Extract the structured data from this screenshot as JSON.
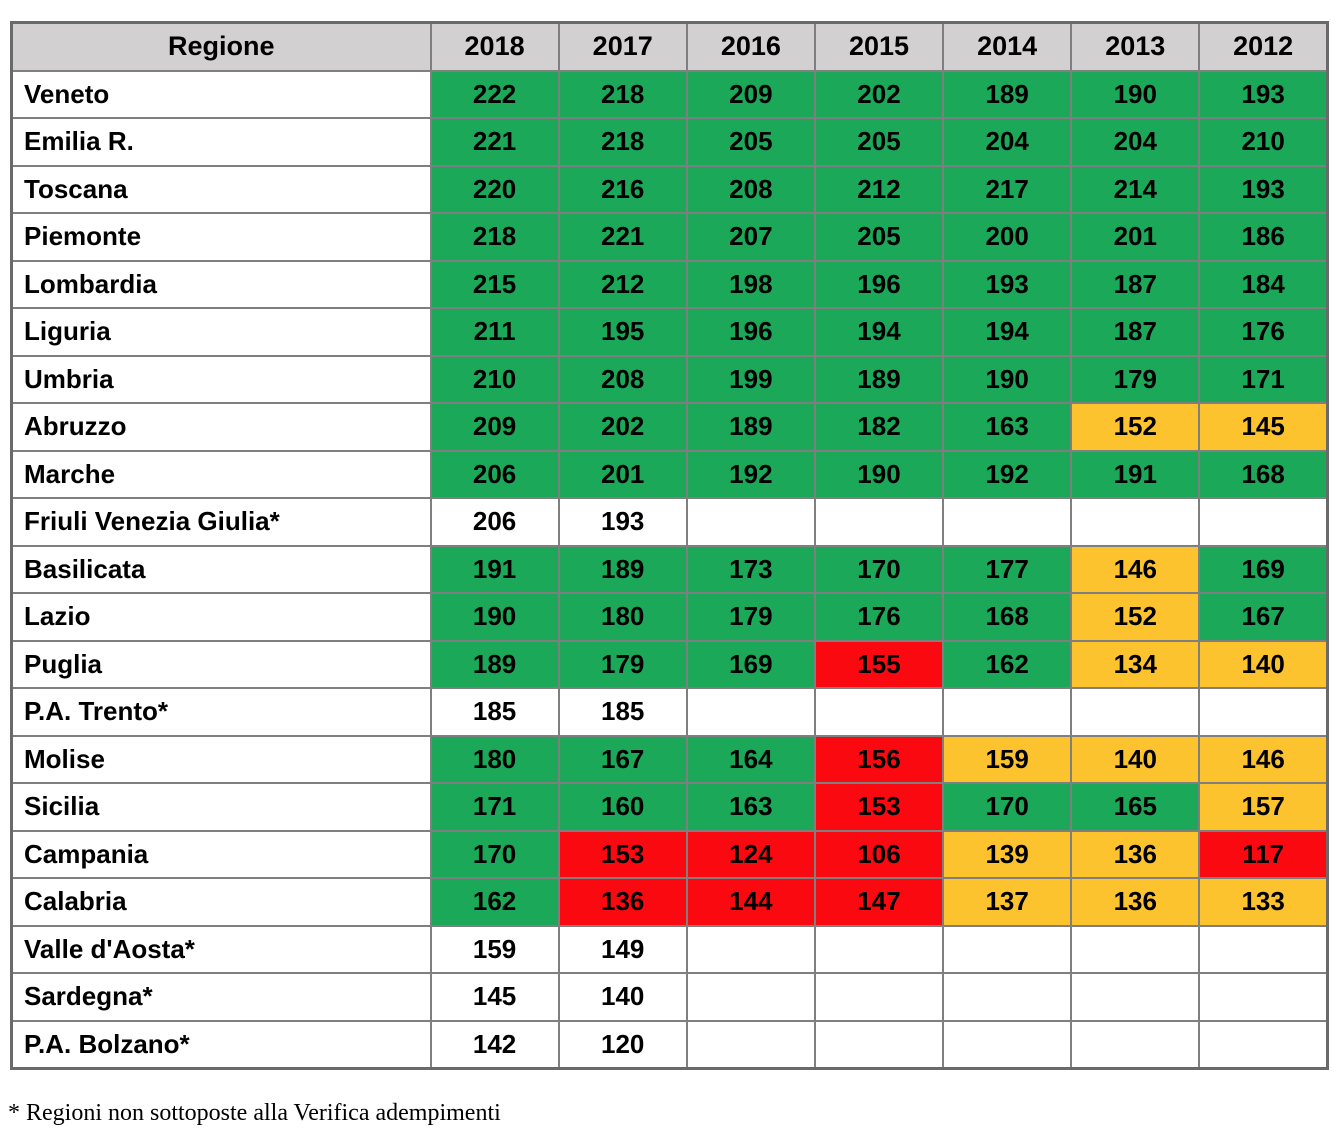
{
  "colors": {
    "green": "#1ba858",
    "orange": "#fdc32f",
    "red": "#fa0a10",
    "header_bg": "#d2d0d0",
    "grid_border": "#7f7f7f",
    "outer_border": "#6a6a6a"
  },
  "chart_data": {
    "type": "table",
    "columns": [
      "Regione",
      "2018",
      "2017",
      "2016",
      "2015",
      "2014",
      "2013",
      "2012"
    ],
    "rows": [
      {
        "region": "Veneto",
        "cells": [
          {
            "v": "222",
            "c": "green"
          },
          {
            "v": "218",
            "c": "green"
          },
          {
            "v": "209",
            "c": "green"
          },
          {
            "v": "202",
            "c": "green"
          },
          {
            "v": "189",
            "c": "green"
          },
          {
            "v": "190",
            "c": "green"
          },
          {
            "v": "193",
            "c": "green"
          }
        ]
      },
      {
        "region": "Emilia R.",
        "cells": [
          {
            "v": "221",
            "c": "green"
          },
          {
            "v": "218",
            "c": "green"
          },
          {
            "v": "205",
            "c": "green"
          },
          {
            "v": "205",
            "c": "green"
          },
          {
            "v": "204",
            "c": "green"
          },
          {
            "v": "204",
            "c": "green"
          },
          {
            "v": "210",
            "c": "green"
          }
        ]
      },
      {
        "region": "Toscana",
        "cells": [
          {
            "v": "220",
            "c": "green"
          },
          {
            "v": "216",
            "c": "green"
          },
          {
            "v": "208",
            "c": "green"
          },
          {
            "v": "212",
            "c": "green"
          },
          {
            "v": "217",
            "c": "green"
          },
          {
            "v": "214",
            "c": "green"
          },
          {
            "v": "193",
            "c": "green"
          }
        ]
      },
      {
        "region": "Piemonte",
        "cells": [
          {
            "v": "218",
            "c": "green"
          },
          {
            "v": "221",
            "c": "green"
          },
          {
            "v": "207",
            "c": "green"
          },
          {
            "v": "205",
            "c": "green"
          },
          {
            "v": "200",
            "c": "green"
          },
          {
            "v": "201",
            "c": "green"
          },
          {
            "v": "186",
            "c": "green"
          }
        ]
      },
      {
        "region": "Lombardia",
        "cells": [
          {
            "v": "215",
            "c": "green"
          },
          {
            "v": "212",
            "c": "green"
          },
          {
            "v": "198",
            "c": "green"
          },
          {
            "v": "196",
            "c": "green"
          },
          {
            "v": "193",
            "c": "green"
          },
          {
            "v": "187",
            "c": "green"
          },
          {
            "v": "184",
            "c": "green"
          }
        ]
      },
      {
        "region": "Liguria",
        "cells": [
          {
            "v": "211",
            "c": "green"
          },
          {
            "v": "195",
            "c": "green"
          },
          {
            "v": "196",
            "c": "green"
          },
          {
            "v": "194",
            "c": "green"
          },
          {
            "v": "194",
            "c": "green"
          },
          {
            "v": "187",
            "c": "green"
          },
          {
            "v": "176",
            "c": "green"
          }
        ]
      },
      {
        "region": "Umbria",
        "cells": [
          {
            "v": "210",
            "c": "green"
          },
          {
            "v": "208",
            "c": "green"
          },
          {
            "v": "199",
            "c": "green"
          },
          {
            "v": "189",
            "c": "green"
          },
          {
            "v": "190",
            "c": "green"
          },
          {
            "v": "179",
            "c": "green"
          },
          {
            "v": "171",
            "c": "green"
          }
        ]
      },
      {
        "region": "Abruzzo",
        "cells": [
          {
            "v": "209",
            "c": "green"
          },
          {
            "v": "202",
            "c": "green"
          },
          {
            "v": "189",
            "c": "green"
          },
          {
            "v": "182",
            "c": "green"
          },
          {
            "v": "163",
            "c": "green"
          },
          {
            "v": "152",
            "c": "orange"
          },
          {
            "v": "145",
            "c": "orange"
          }
        ]
      },
      {
        "region": "Marche",
        "cells": [
          {
            "v": "206",
            "c": "green"
          },
          {
            "v": "201",
            "c": "green"
          },
          {
            "v": "192",
            "c": "green"
          },
          {
            "v": "190",
            "c": "green"
          },
          {
            "v": "192",
            "c": "green"
          },
          {
            "v": "191",
            "c": "green"
          },
          {
            "v": "168",
            "c": "green"
          }
        ]
      },
      {
        "region": "Friuli Venezia Giulia*",
        "cells": [
          {
            "v": "206",
            "c": "white"
          },
          {
            "v": "193",
            "c": "white"
          },
          {
            "v": "",
            "c": "white"
          },
          {
            "v": "",
            "c": "white"
          },
          {
            "v": "",
            "c": "white"
          },
          {
            "v": "",
            "c": "white"
          },
          {
            "v": "",
            "c": "white"
          }
        ]
      },
      {
        "region": "Basilicata",
        "cells": [
          {
            "v": "191",
            "c": "green"
          },
          {
            "v": "189",
            "c": "green"
          },
          {
            "v": "173",
            "c": "green"
          },
          {
            "v": "170",
            "c": "green"
          },
          {
            "v": "177",
            "c": "green"
          },
          {
            "v": "146",
            "c": "orange"
          },
          {
            "v": "169",
            "c": "green"
          }
        ]
      },
      {
        "region": "Lazio",
        "cells": [
          {
            "v": "190",
            "c": "green"
          },
          {
            "v": "180",
            "c": "green"
          },
          {
            "v": "179",
            "c": "green"
          },
          {
            "v": "176",
            "c": "green"
          },
          {
            "v": "168",
            "c": "green"
          },
          {
            "v": "152",
            "c": "orange"
          },
          {
            "v": "167",
            "c": "green"
          }
        ]
      },
      {
        "region": "Puglia",
        "cells": [
          {
            "v": "189",
            "c": "green"
          },
          {
            "v": "179",
            "c": "green"
          },
          {
            "v": "169",
            "c": "green"
          },
          {
            "v": "155",
            "c": "red"
          },
          {
            "v": "162",
            "c": "green"
          },
          {
            "v": "134",
            "c": "orange"
          },
          {
            "v": "140",
            "c": "orange"
          }
        ]
      },
      {
        "region": "P.A. Trento*",
        "cells": [
          {
            "v": "185",
            "c": "white"
          },
          {
            "v": "185",
            "c": "white"
          },
          {
            "v": "",
            "c": "white"
          },
          {
            "v": "",
            "c": "white"
          },
          {
            "v": "",
            "c": "white"
          },
          {
            "v": "",
            "c": "white"
          },
          {
            "v": "",
            "c": "white"
          }
        ]
      },
      {
        "region": "Molise",
        "cells": [
          {
            "v": "180",
            "c": "green"
          },
          {
            "v": "167",
            "c": "green"
          },
          {
            "v": "164",
            "c": "green"
          },
          {
            "v": "156",
            "c": "red"
          },
          {
            "v": "159",
            "c": "orange"
          },
          {
            "v": "140",
            "c": "orange"
          },
          {
            "v": "146",
            "c": "orange"
          }
        ]
      },
      {
        "region": "Sicilia",
        "cells": [
          {
            "v": "171",
            "c": "green"
          },
          {
            "v": "160",
            "c": "green"
          },
          {
            "v": "163",
            "c": "green"
          },
          {
            "v": "153",
            "c": "red"
          },
          {
            "v": "170",
            "c": "green"
          },
          {
            "v": "165",
            "c": "green"
          },
          {
            "v": "157",
            "c": "orange"
          }
        ]
      },
      {
        "region": "Campania",
        "cells": [
          {
            "v": "170",
            "c": "green"
          },
          {
            "v": "153",
            "c": "red"
          },
          {
            "v": "124",
            "c": "red"
          },
          {
            "v": "106",
            "c": "red"
          },
          {
            "v": "139",
            "c": "orange"
          },
          {
            "v": "136",
            "c": "orange"
          },
          {
            "v": "117",
            "c": "red"
          }
        ]
      },
      {
        "region": "Calabria",
        "cells": [
          {
            "v": "162",
            "c": "green"
          },
          {
            "v": "136",
            "c": "red"
          },
          {
            "v": "144",
            "c": "red"
          },
          {
            "v": "147",
            "c": "red"
          },
          {
            "v": "137",
            "c": "orange"
          },
          {
            "v": "136",
            "c": "orange"
          },
          {
            "v": "133",
            "c": "orange"
          }
        ]
      },
      {
        "region": "Valle d'Aosta*",
        "cells": [
          {
            "v": "159",
            "c": "white"
          },
          {
            "v": "149",
            "c": "white"
          },
          {
            "v": "",
            "c": "white"
          },
          {
            "v": "",
            "c": "white"
          },
          {
            "v": "",
            "c": "white"
          },
          {
            "v": "",
            "c": "white"
          },
          {
            "v": "",
            "c": "white"
          }
        ]
      },
      {
        "region": "Sardegna*",
        "cells": [
          {
            "v": "145",
            "c": "white"
          },
          {
            "v": "140",
            "c": "white"
          },
          {
            "v": "",
            "c": "white"
          },
          {
            "v": "",
            "c": "white"
          },
          {
            "v": "",
            "c": "white"
          },
          {
            "v": "",
            "c": "white"
          },
          {
            "v": "",
            "c": "white"
          }
        ]
      },
      {
        "region": "P.A. Bolzano*",
        "cells": [
          {
            "v": "142",
            "c": "white"
          },
          {
            "v": "120",
            "c": "white"
          },
          {
            "v": "",
            "c": "white"
          },
          {
            "v": "",
            "c": "white"
          },
          {
            "v": "",
            "c": "white"
          },
          {
            "v": "",
            "c": "white"
          },
          {
            "v": "",
            "c": "white"
          }
        ]
      }
    ]
  },
  "footnote": "* Regioni non sottoposte alla Verifica adempimenti"
}
